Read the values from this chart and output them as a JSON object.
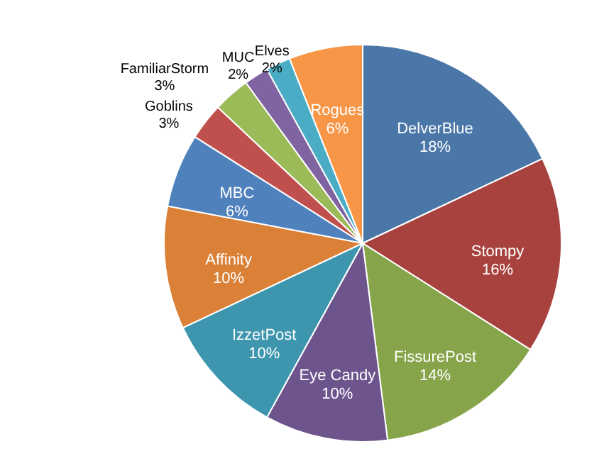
{
  "chart_data": {
    "type": "pie",
    "categories": [
      "DelverBlue",
      "Stompy",
      "FissurePost",
      "Eye Candy",
      "IzzetPost",
      "Affinity",
      "MBC",
      "Goblins",
      "FamiliarStorm",
      "MUC",
      "Elves",
      "Rogues"
    ],
    "values": [
      18,
      16,
      14,
      10,
      10,
      10,
      6,
      3,
      3,
      2,
      2,
      6
    ],
    "value_labels": [
      "18%",
      "16%",
      "14%",
      "10%",
      "10%",
      "10%",
      "6%",
      "3%",
      "3%",
      "2%",
      "2%",
      "6%"
    ],
    "colors": [
      "#4a76a8",
      "#a8423f",
      "#86a44a",
      "#6e548d",
      "#3d96ae",
      "#da8137",
      "#4f81bd",
      "#c0504d",
      "#9bbb59",
      "#8064a2",
      "#4bacc6",
      "#f79646"
    ]
  }
}
